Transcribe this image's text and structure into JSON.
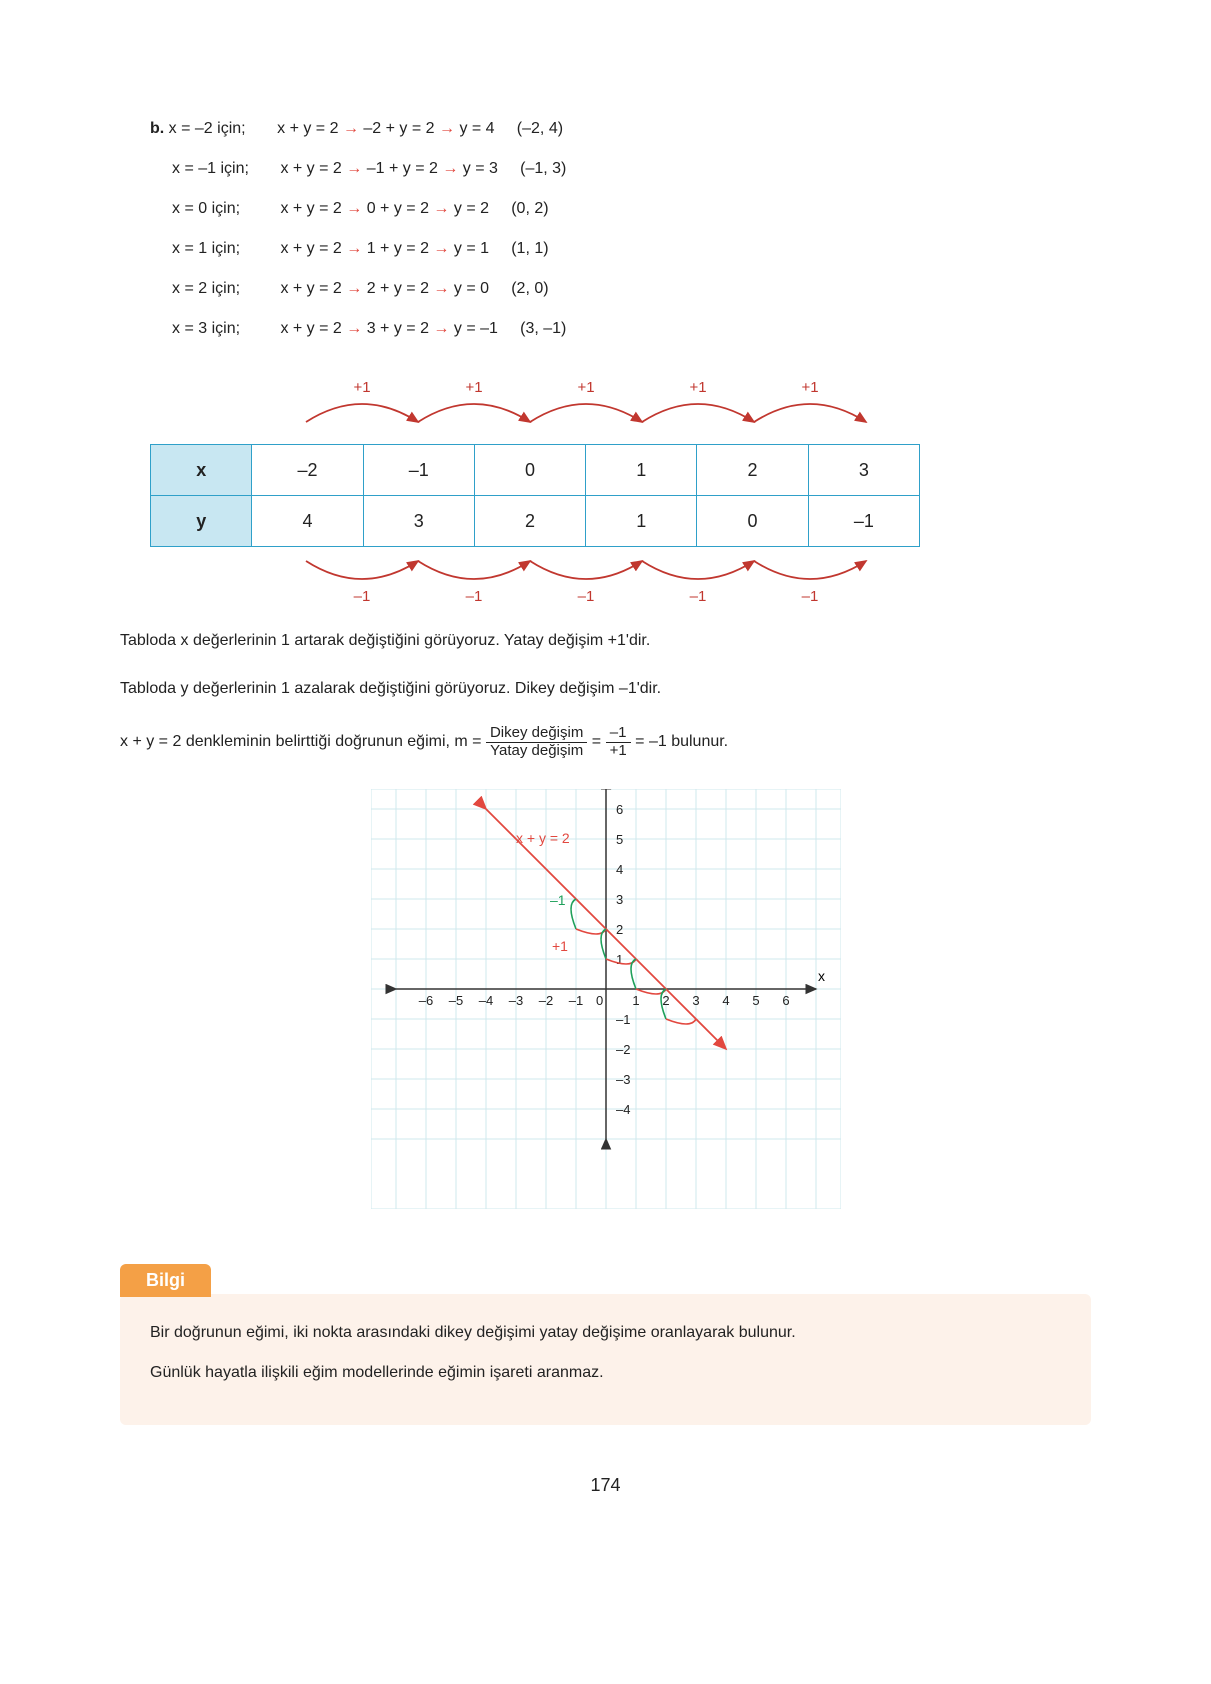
{
  "equations": [
    {
      "prefix": "b. ",
      "x": "x = –2 için;",
      "eq": "x + y = 2",
      "sub": "–2 + y = 2",
      "res": "y = 4",
      "pt": "(–2, 4)"
    },
    {
      "prefix": "",
      "x": "x = –1 için;",
      "eq": "x + y = 2",
      "sub": "–1 + y = 2",
      "res": "y = 3",
      "pt": "(–1, 3)"
    },
    {
      "prefix": "",
      "x": "x = 0 için;",
      "eq": "x + y = 2",
      "sub": "0 + y = 2",
      "res": "y = 2",
      "pt": "(0, 2)"
    },
    {
      "prefix": "",
      "x": "x = 1 için;",
      "eq": "x + y = 2",
      "sub": "1 + y = 2",
      "res": "y = 1",
      "pt": "(1, 1)"
    },
    {
      "prefix": "",
      "x": "x = 2 için;",
      "eq": "x + y = 2",
      "sub": "2 + y = 2",
      "res": "y = 0",
      "pt": "(2, 0)"
    },
    {
      "prefix": "",
      "x": "x = 3 için;",
      "eq": "x + y = 2",
      "sub": "3 + y = 2",
      "res": "y = –1",
      "pt": "(3, –1)"
    }
  ],
  "table": {
    "x_label": "x",
    "y_label": "y",
    "x_values": [
      "–2",
      "–1",
      "0",
      "1",
      "2",
      "3"
    ],
    "y_values": [
      "4",
      "3",
      "2",
      "1",
      "0",
      "–1"
    ],
    "top_arc_label": "+1",
    "bottom_arc_label": "–1",
    "arc_color": "#c1372f",
    "border_color": "#2fa0c9",
    "header_bg": "#c8e7f2"
  },
  "para1": "Tabloda x değerlerinin 1 artarak değiştiğini görüyoruz. Yatay değişim +1'dir.",
  "para2": "Tabloda y değerlerinin 1 azalarak değiştiğini görüyoruz. Dikey değişim –1'dir.",
  "slope_line": {
    "pre": "x + y = 2 denkleminin belirttiği doğrunun eğimi, m = ",
    "frac1_num": "Dikey değişim",
    "frac1_den": "Yatay değişim",
    "mid": " = ",
    "frac2_num": "–1",
    "frac2_den": "+1",
    "post": " = –1 bulunur."
  },
  "chart": {
    "type": "line-on-grid",
    "x_range": [
      -7,
      7
    ],
    "y_range": [
      -5,
      7
    ],
    "grid_color": "#cfe8ee",
    "axis_color": "#333333",
    "line_color": "#e2483f",
    "step_green": "#1ea05a",
    "step_red": "#e2483f",
    "equation_label": "x + y = 2",
    "equation_label_color": "#e2483f",
    "x_ticks": [
      -6,
      -5,
      -4,
      -3,
      -2,
      -1,
      0,
      1,
      2,
      3,
      4,
      5,
      6
    ],
    "y_ticks": [
      -4,
      -3,
      -2,
      -1,
      1,
      2,
      3,
      4,
      5,
      6
    ],
    "step_green_label": "–1",
    "step_red_label": "+1",
    "line_points": [
      [
        -4,
        6
      ],
      [
        4,
        -2
      ]
    ]
  },
  "bilgi": {
    "tab": "Bilgi",
    "line1": "Bir doğrunun eğimi, iki nokta arasındaki dikey değişimi yatay değişime oranlayarak bulunur.",
    "line2": "Günlük hayatla ilişkili eğim modellerinde eğimin işareti aranmaz.",
    "tab_bg": "#f4a046",
    "box_bg": "#fdf2ea"
  },
  "page_number": "174"
}
